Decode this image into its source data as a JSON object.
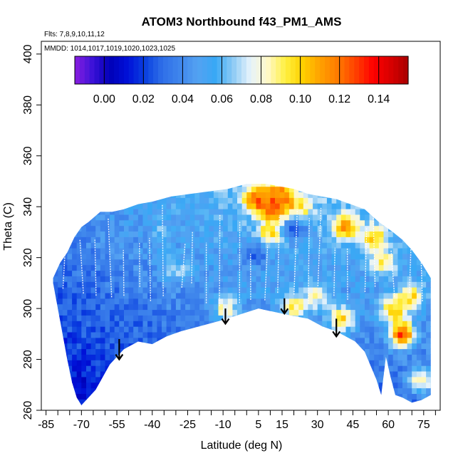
{
  "chart_data": {
    "type": "heatmap",
    "title": "ATOM3 Northbound f43_PM1_AMS",
    "flights_note": "Flts: 7,8,9,10,11,12",
    "dates_note": "MMDD: 1014,1017,1019,1020,1023,1025",
    "xlabel": "Latitude (deg N)",
    "ylabel": "Theta (C)",
    "xlim": [
      -87,
      82
    ],
    "ylim": [
      260,
      405
    ],
    "x_ticks": [
      -85,
      -70,
      -55,
      -40,
      -25,
      -10,
      5,
      15,
      30,
      45,
      60,
      75
    ],
    "x_minor_tick_step": 5,
    "y_ticks": [
      260,
      280,
      300,
      320,
      340,
      360,
      380,
      400
    ],
    "colorbar": {
      "min": -0.015,
      "max": 0.155,
      "ticks": [
        0.0,
        0.02,
        0.04,
        0.06,
        0.08,
        0.1,
        0.12,
        0.14
      ],
      "tick_labels": [
        "0.00",
        "0.02",
        "0.04",
        "0.06",
        "0.08",
        "0.10",
        "0.12",
        "0.14"
      ],
      "colors": [
        "#8a1ee0",
        "#3c12d8",
        "#0000b8",
        "#0010d8",
        "#0a40e0",
        "#2f6fe8",
        "#3f86ec",
        "#54a2f2",
        "#38a8f5",
        "#8ccaf5",
        "#e6f3fb",
        "#fff8c8",
        "#fff040",
        "#ffd000",
        "#ffa000",
        "#ff7a00",
        "#ff4000",
        "#ff0000",
        "#d80000",
        "#a80000"
      ]
    },
    "data_envelope": {
      "top": [
        [
          -82,
          312
        ],
        [
          -79,
          318
        ],
        [
          -76,
          322
        ],
        [
          -73,
          328
        ],
        [
          -70,
          332
        ],
        [
          -67,
          334
        ],
        [
          -62,
          338
        ],
        [
          -57,
          338
        ],
        [
          -52,
          339
        ],
        [
          -46,
          341
        ],
        [
          -40,
          342
        ],
        [
          -32,
          344
        ],
        [
          -24,
          345
        ],
        [
          -16,
          346
        ],
        [
          -8,
          347
        ],
        [
          0,
          349
        ],
        [
          8,
          349
        ],
        [
          14,
          348
        ],
        [
          20,
          347
        ],
        [
          26,
          345
        ],
        [
          32,
          344
        ],
        [
          38,
          343
        ],
        [
          44,
          341
        ],
        [
          50,
          339
        ],
        [
          56,
          334
        ],
        [
          62,
          330
        ],
        [
          66,
          327
        ],
        [
          70,
          323
        ],
        [
          74,
          318
        ],
        [
          78,
          312
        ]
      ],
      "bottom": [
        [
          -82,
          310
        ],
        [
          -80,
          300
        ],
        [
          -78,
          290
        ],
        [
          -76,
          280
        ],
        [
          -74,
          271
        ],
        [
          -72,
          265
        ],
        [
          -70,
          262
        ],
        [
          -64,
          268
        ],
        [
          -58,
          278
        ],
        [
          -52,
          284
        ],
        [
          -46,
          287
        ],
        [
          -40,
          286
        ],
        [
          -34,
          289
        ],
        [
          -28,
          291
        ],
        [
          -20,
          293
        ],
        [
          -12,
          295
        ],
        [
          -5,
          297
        ],
        [
          5,
          300
        ],
        [
          10,
          299
        ],
        [
          15,
          298
        ],
        [
          20,
          297
        ],
        [
          26,
          296
        ],
        [
          32,
          293
        ],
        [
          38,
          291
        ],
        [
          42,
          289
        ],
        [
          46,
          287
        ],
        [
          50,
          283
        ],
        [
          55,
          272
        ],
        [
          57,
          266
        ],
        [
          59,
          281
        ],
        [
          61,
          273
        ],
        [
          63,
          266
        ],
        [
          66,
          265
        ],
        [
          70,
          263
        ],
        [
          74,
          264
        ],
        [
          78,
          266
        ]
      ]
    },
    "hotspots": [
      {
        "lat": 12,
        "theta": 340,
        "value": 0.13
      },
      {
        "lat": 4,
        "theta": 343,
        "value": 0.12
      },
      {
        "lat": 14,
        "theta": 345,
        "value": 0.11
      },
      {
        "lat": 22,
        "theta": 339,
        "value": 0.1
      },
      {
        "lat": 10,
        "theta": 330,
        "value": 0.1
      },
      {
        "lat": 42,
        "theta": 332,
        "value": 0.11
      },
      {
        "lat": 54,
        "theta": 328,
        "value": 0.1
      },
      {
        "lat": 58,
        "theta": 318,
        "value": 0.09
      },
      {
        "lat": 62,
        "theta": 300,
        "value": 0.1
      },
      {
        "lat": 70,
        "theta": 305,
        "value": 0.095
      },
      {
        "lat": 40,
        "theta": 296,
        "value": 0.1
      },
      {
        "lat": 66,
        "theta": 290,
        "value": 0.13
      },
      {
        "lat": 74,
        "theta": 272,
        "value": 0.09
      },
      {
        "lat": -9,
        "theta": 300,
        "value": 0.085
      },
      {
        "lat": 20,
        "theta": 301,
        "value": 0.09
      },
      {
        "lat": 30,
        "theta": 305,
        "value": 0.08
      },
      {
        "lat": -30,
        "theta": 316,
        "value": 0.07
      },
      {
        "lat": -36,
        "theta": 330,
        "value": 0.06
      },
      {
        "lat": -70,
        "theta": 268,
        "value": 0.005
      },
      {
        "lat": -74,
        "theta": 278,
        "value": 0.015
      },
      {
        "lat": -60,
        "theta": 275,
        "value": 0.02
      },
      {
        "lat": -45,
        "theta": 300,
        "value": 0.03
      },
      {
        "lat": 4,
        "theta": 322,
        "value": 0.025
      },
      {
        "lat": 20,
        "theta": 332,
        "value": 0.02
      }
    ],
    "arrows": [
      {
        "lat": -54,
        "theta_top": 288,
        "theta_tip": 280
      },
      {
        "lat": -9,
        "theta_top": 300,
        "theta_tip": 294
      },
      {
        "lat": 16,
        "theta_top": 304,
        "theta_tip": 298
      },
      {
        "lat": 38,
        "theta_top": 296,
        "theta_tip": 289
      }
    ]
  }
}
